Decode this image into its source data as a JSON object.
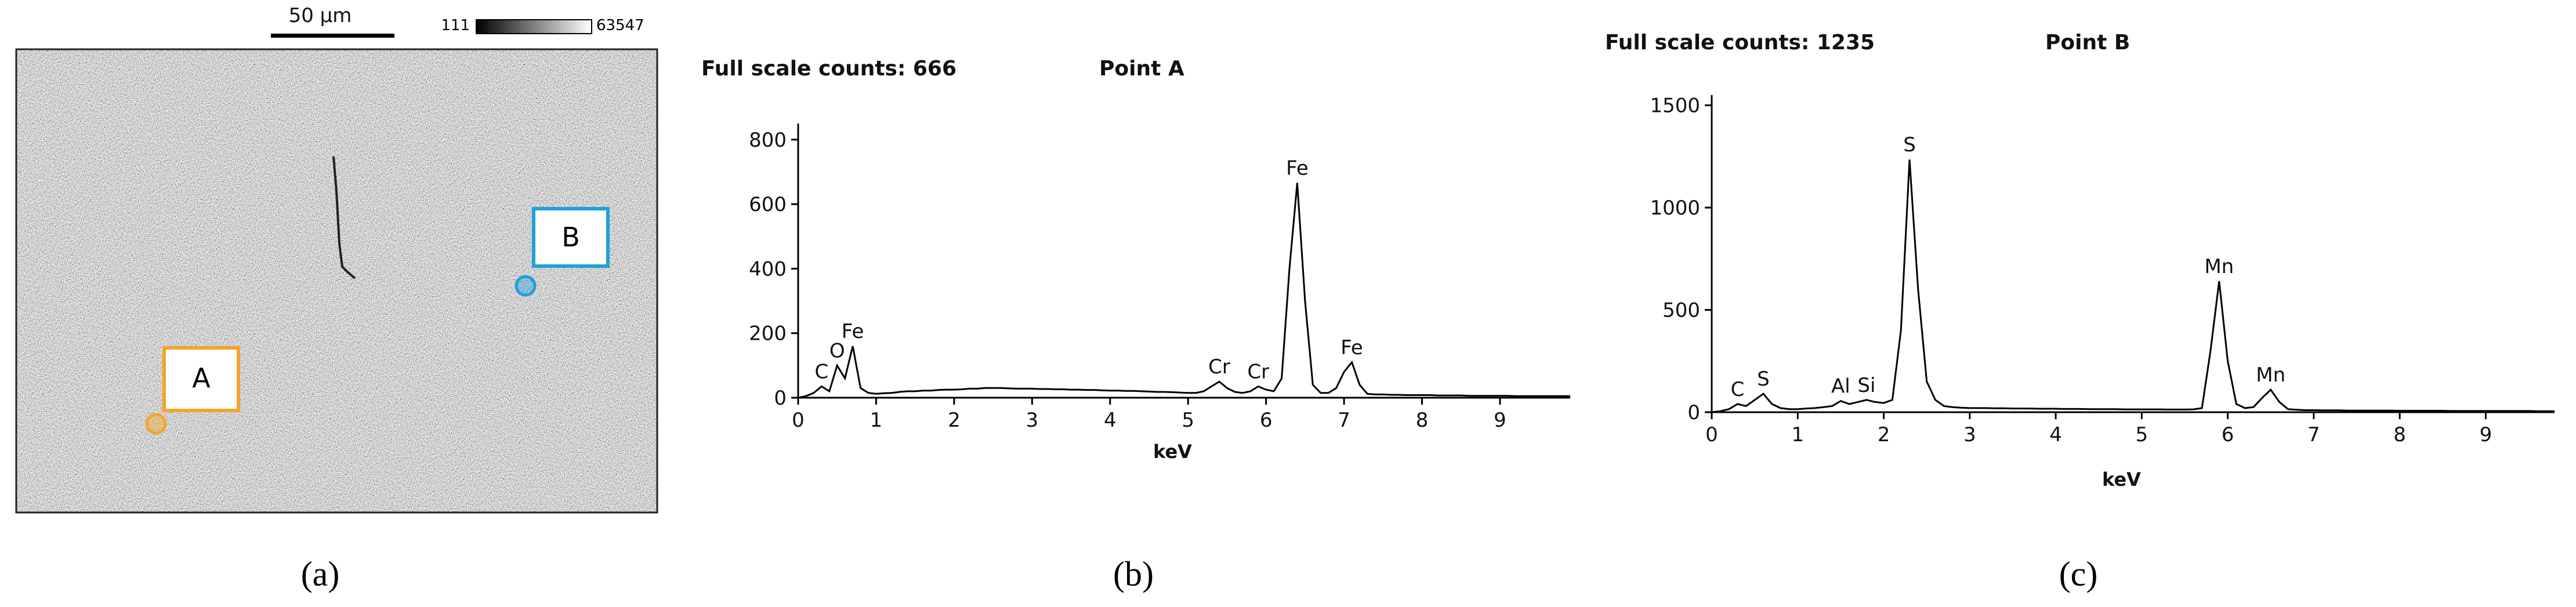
{
  "panel_a": {
    "scale_bar": "50 µm",
    "colorbar_min": "111",
    "colorbar_max": "63547",
    "points": [
      {
        "label": "A",
        "color": "#f2a52a"
      },
      {
        "label": "B",
        "color": "#1fa0d8"
      }
    ],
    "caption": "(a)"
  },
  "chart_data": [
    {
      "type": "line",
      "title": "Point A",
      "subtitle": "Full scale counts: 666",
      "x_label": "keV",
      "caption": "(b)",
      "color": "#000000",
      "xlim": [
        0,
        9.9
      ],
      "xticks": [
        0,
        1,
        2,
        3,
        4,
        5,
        6,
        7,
        8,
        9
      ],
      "ylim": [
        0,
        850
      ],
      "yticks": [
        0,
        200,
        400,
        600,
        800
      ],
      "x": [
        0,
        0.1,
        0.2,
        0.3,
        0.4,
        0.5,
        0.6,
        0.7,
        0.8,
        0.9,
        1,
        1.1,
        1.2,
        1.3,
        1.4,
        1.5,
        1.6,
        1.7,
        1.8,
        1.9,
        2,
        2.1,
        2.2,
        2.3,
        2.4,
        2.5,
        2.6,
        2.7,
        2.8,
        2.9,
        3,
        3.1,
        3.2,
        3.3,
        3.4,
        3.5,
        3.6,
        3.7,
        3.8,
        3.9,
        4,
        4.1,
        4.2,
        4.3,
        4.4,
        4.5,
        4.6,
        4.7,
        4.8,
        4.9,
        5,
        5.1,
        5.2,
        5.3,
        5.4,
        5.5,
        5.6,
        5.7,
        5.8,
        5.9,
        6,
        6.1,
        6.2,
        6.3,
        6.4,
        6.5,
        6.6,
        6.7,
        6.8,
        6.9,
        7,
        7.1,
        7.2,
        7.3,
        7.4,
        7.5,
        7.6,
        7.7,
        7.8,
        7.9,
        8,
        8.1,
        8.2,
        8.3,
        8.4,
        8.5,
        8.6,
        8.7,
        8.8,
        8.9,
        9,
        9.1,
        9.2,
        9.3,
        9.4,
        9.5,
        9.6,
        9.7,
        9.8,
        9.9
      ],
      "values": [
        0,
        5,
        15,
        35,
        20,
        100,
        60,
        160,
        30,
        15,
        12,
        14,
        15,
        18,
        20,
        20,
        22,
        22,
        24,
        25,
        25,
        26,
        28,
        28,
        30,
        30,
        30,
        29,
        28,
        28,
        28,
        27,
        27,
        26,
        26,
        25,
        25,
        24,
        24,
        23,
        22,
        22,
        21,
        21,
        20,
        19,
        18,
        18,
        17,
        16,
        15,
        15,
        20,
        35,
        50,
        30,
        18,
        15,
        20,
        35,
        25,
        20,
        60,
        400,
        666,
        300,
        40,
        15,
        15,
        30,
        80,
        110,
        40,
        12,
        10,
        10,
        9,
        9,
        8,
        8,
        8,
        8,
        7,
        7,
        7,
        7,
        6,
        6,
        6,
        6,
        6,
        6,
        5,
        5,
        5,
        5,
        5,
        5,
        5,
        5
      ],
      "annotations": [
        {
          "text": "C",
          "x": 0.3
        },
        {
          "text": "O",
          "x": 0.5
        },
        {
          "text": "Fe",
          "x": 0.7
        },
        {
          "text": "Cr",
          "x": 5.4
        },
        {
          "text": "Cr",
          "x": 5.9
        },
        {
          "text": "Fe",
          "x": 6.4
        },
        {
          "text": "Fe",
          "x": 7.1
        }
      ]
    },
    {
      "type": "line",
      "title": "Point B",
      "subtitle": "Full scale counts: 1235",
      "x_label": "keV",
      "caption": "(c)",
      "color": "#000000",
      "xlim": [
        0,
        9.8
      ],
      "xticks": [
        0,
        1,
        2,
        3,
        4,
        5,
        6,
        7,
        8,
        9
      ],
      "ylim": [
        0,
        1550
      ],
      "yticks": [
        0,
        500,
        1000,
        1500
      ],
      "x": [
        0,
        0.1,
        0.2,
        0.3,
        0.4,
        0.5,
        0.6,
        0.7,
        0.8,
        0.9,
        1,
        1.1,
        1.2,
        1.3,
        1.4,
        1.5,
        1.6,
        1.7,
        1.8,
        1.9,
        2,
        2.1,
        2.2,
        2.3,
        2.4,
        2.5,
        2.6,
        2.7,
        2.8,
        2.9,
        3,
        3.1,
        3.2,
        3.3,
        3.4,
        3.5,
        3.6,
        3.7,
        3.8,
        3.9,
        4,
        4.1,
        4.2,
        4.3,
        4.4,
        4.5,
        4.6,
        4.7,
        4.8,
        4.9,
        5,
        5.1,
        5.2,
        5.3,
        5.4,
        5.5,
        5.6,
        5.7,
        5.8,
        5.9,
        6,
        6.1,
        6.2,
        6.3,
        6.4,
        6.5,
        6.6,
        6.7,
        6.8,
        6.9,
        7,
        7.1,
        7.2,
        7.3,
        7.4,
        7.5,
        7.6,
        7.7,
        7.8,
        7.9,
        8,
        8.1,
        8.2,
        8.3,
        8.4,
        8.5,
        8.6,
        8.7,
        8.8,
        8.9,
        9,
        9.1,
        9.2,
        9.3,
        9.4,
        9.5,
        9.6,
        9.7,
        9.8
      ],
      "values": [
        0,
        5,
        15,
        40,
        30,
        60,
        90,
        40,
        20,
        15,
        15,
        18,
        20,
        25,
        30,
        55,
        40,
        50,
        60,
        50,
        45,
        60,
        400,
        1235,
        600,
        150,
        60,
        30,
        25,
        22,
        20,
        20,
        20,
        19,
        19,
        18,
        18,
        18,
        17,
        17,
        17,
        16,
        16,
        16,
        15,
        15,
        15,
        15,
        14,
        14,
        14,
        14,
        14,
        13,
        13,
        13,
        14,
        20,
        300,
        640,
        250,
        40,
        20,
        25,
        70,
        110,
        50,
        15,
        12,
        10,
        10,
        9,
        9,
        9,
        8,
        8,
        8,
        8,
        8,
        8,
        7,
        7,
        7,
        7,
        7,
        7,
        6,
        6,
        6,
        6,
        6,
        6,
        6,
        6,
        6,
        6,
        5,
        5,
        5
      ],
      "annotations": [
        {
          "text": "C",
          "x": 0.3
        },
        {
          "text": "S",
          "x": 0.6
        },
        {
          "text": "Al",
          "x": 1.5
        },
        {
          "text": "Si",
          "x": 1.8
        },
        {
          "text": "S",
          "x": 2.3
        },
        {
          "text": "Mn",
          "x": 5.9
        },
        {
          "text": "Mn",
          "x": 6.5
        }
      ]
    }
  ]
}
